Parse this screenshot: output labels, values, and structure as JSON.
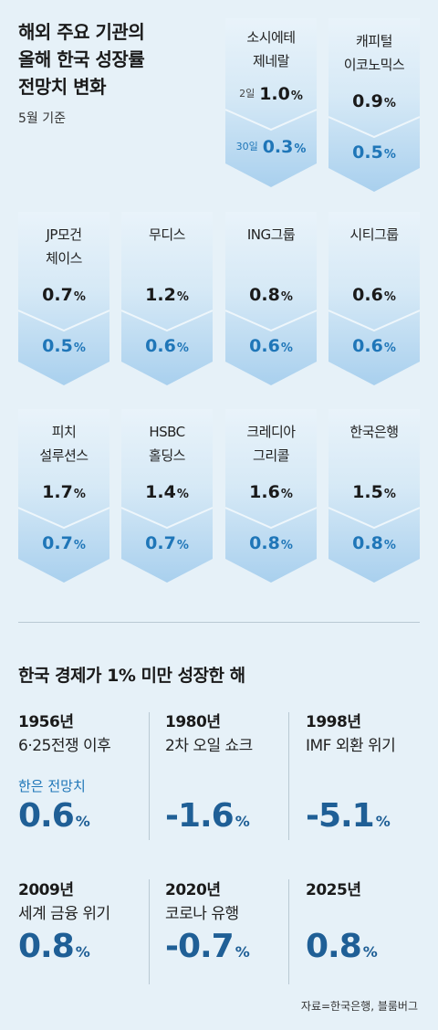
{
  "header": {
    "title_lines": [
      "해외 주요 기관의",
      "올해 한국 성장률",
      "전망치 변화"
    ],
    "subtitle": "5월 기준"
  },
  "chart_data": [
    {
      "type": "table",
      "unit": "%",
      "month_labels": {
        "before": "2일",
        "after": "30일"
      },
      "institutions": [
        {
          "name_lines": [
            "소시에테",
            "제네랄"
          ],
          "before": 1.0,
          "after": 0.3,
          "before_label": "1.0",
          "after_label": "0.3"
        },
        {
          "name_lines": [
            "캐피털",
            "이코노믹스"
          ],
          "before": 0.9,
          "after": 0.5,
          "before_label": "0.9",
          "after_label": "0.5"
        },
        {
          "name_lines": [
            "JP모건",
            "체이스"
          ],
          "before": 0.7,
          "after": 0.5,
          "before_label": "0.7",
          "after_label": "0.5"
        },
        {
          "name_lines": [
            "무디스"
          ],
          "before": 1.2,
          "after": 0.6,
          "before_label": "1.2",
          "after_label": "0.6"
        },
        {
          "name_lines": [
            "ING그룹"
          ],
          "before": 0.8,
          "after": 0.6,
          "before_label": "0.8",
          "after_label": "0.6"
        },
        {
          "name_lines": [
            "시티그룹"
          ],
          "before": 0.6,
          "after": 0.6,
          "before_label": "0.6",
          "after_label": "0.6"
        },
        {
          "name_lines": [
            "피치",
            "설루션스"
          ],
          "before": 1.7,
          "after": 0.7,
          "before_label": "1.7",
          "after_label": "0.7"
        },
        {
          "name_lines": [
            "HSBC",
            "홀딩스"
          ],
          "before": 1.4,
          "after": 0.7,
          "before_label": "1.4",
          "after_label": "0.7"
        },
        {
          "name_lines": [
            "크레디아",
            "그리콜"
          ],
          "before": 1.6,
          "after": 0.8,
          "before_label": "1.6",
          "after_label": "0.8"
        },
        {
          "name_lines": [
            "한국은행"
          ],
          "before": 1.5,
          "after": 0.8,
          "before_label": "1.5",
          "after_label": "0.8"
        }
      ]
    },
    {
      "type": "table",
      "title": "한국 경제가 1% 미만 성장한 해",
      "unit": "%",
      "years": [
        {
          "year": "1956년",
          "event": "6·25전쟁 이후",
          "note": "한은 전망치",
          "value": 0.6,
          "value_label": "0.6"
        },
        {
          "year": "1980년",
          "event": "2차 오일 쇼크",
          "note": "",
          "value": -1.6,
          "value_label": "-1.6"
        },
        {
          "year": "1998년",
          "event": "IMF 외환 위기",
          "note": "",
          "value": -5.1,
          "value_label": "-5.1"
        },
        {
          "year": "2009년",
          "event": "세계 금융 위기",
          "note": "",
          "value": 0.8,
          "value_label": "0.8"
        },
        {
          "year": "2020년",
          "event": "코로나 유행",
          "note": "",
          "value": -0.7,
          "value_label": "-0.7"
        },
        {
          "year": "2025년",
          "event": "",
          "note": "",
          "value": 0.8,
          "value_label": "0.8"
        }
      ]
    }
  ],
  "footer": {
    "source": "자료=한국은행, 블룸버그"
  },
  "colors": {
    "background": "#e6f1f8",
    "accent": "#1f76b8",
    "big_value": "#1f5f96"
  }
}
